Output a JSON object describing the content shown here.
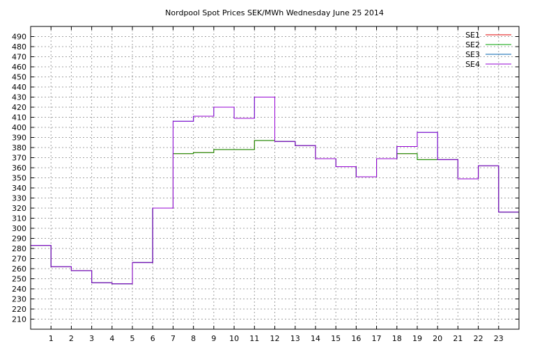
{
  "chart_data": {
    "type": "line",
    "step": true,
    "title": "Nordpool Spot Prices SEK/MWh Wednesday June 25 2014",
    "xlabel": "",
    "ylabel": "",
    "xlim": [
      0,
      24
    ],
    "ylim": [
      200,
      500
    ],
    "x_ticks": [
      1,
      2,
      3,
      4,
      5,
      6,
      7,
      8,
      9,
      10,
      11,
      12,
      13,
      14,
      15,
      16,
      17,
      18,
      19,
      20,
      21,
      22,
      23
    ],
    "y_ticks": [
      210,
      220,
      230,
      240,
      250,
      260,
      270,
      280,
      290,
      300,
      310,
      320,
      330,
      340,
      350,
      360,
      370,
      380,
      390,
      400,
      410,
      420,
      430,
      440,
      450,
      460,
      470,
      480,
      490
    ],
    "grid": true,
    "legend_position": "top-right",
    "x": [
      0,
      1,
      2,
      3,
      4,
      5,
      6,
      7,
      8,
      9,
      10,
      11,
      12,
      13,
      14,
      15,
      16,
      17,
      18,
      19,
      20,
      21,
      22,
      23
    ],
    "series": [
      {
        "name": "SE1",
        "color": "#e00000",
        "values": [
          283,
          262,
          258,
          246,
          245,
          266,
          320,
          374,
          375,
          378,
          378,
          387,
          386,
          382,
          369,
          361,
          351,
          369,
          374,
          368,
          368,
          349,
          362,
          316
        ]
      },
      {
        "name": "SE2",
        "color": "#00a000",
        "values": [
          283,
          262,
          258,
          246,
          245,
          266,
          320,
          374,
          375,
          378,
          378,
          387,
          386,
          382,
          369,
          361,
          351,
          369,
          374,
          368,
          368,
          349,
          362,
          316
        ]
      },
      {
        "name": "SE3",
        "color": "#0060ad",
        "values": [
          283,
          262,
          258,
          246,
          245,
          266,
          320,
          406,
          411,
          420,
          409,
          430,
          386,
          382,
          369,
          361,
          351,
          369,
          381,
          395,
          368,
          349,
          362,
          316
        ]
      },
      {
        "name": "SE4",
        "color": "#9400d3",
        "values": [
          283,
          262,
          258,
          246,
          245,
          266,
          320,
          406,
          411,
          420,
          409,
          430,
          386,
          382,
          369,
          361,
          351,
          369,
          381,
          395,
          368,
          349,
          362,
          316
        ]
      }
    ]
  }
}
